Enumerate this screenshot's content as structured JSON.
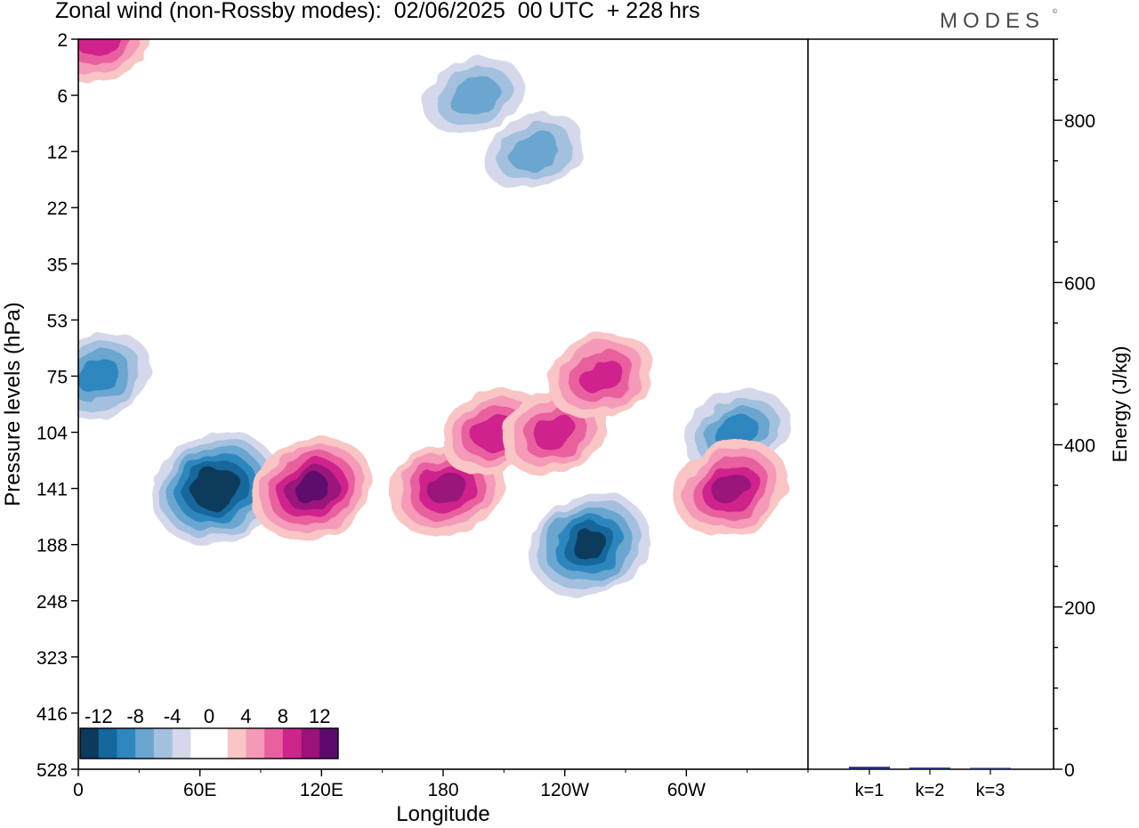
{
  "title": "Zonal wind (non-Rossby modes):  02/06/2025  00 UTC  + 228 hrs",
  "logo": "MODES",
  "logo_mark": "©",
  "chart_data": [
    {
      "type": "heatmap",
      "name": "zonal-wind-contours",
      "xlabel": "Longitude",
      "ylabel": "Pressure levels (hPa)",
      "x_ticks": [
        "0",
        "60E",
        "120E",
        "180",
        "120W",
        "60W"
      ],
      "x_tick_degrees": [
        0,
        60,
        120,
        180,
        240,
        300
      ],
      "xlim": [
        0,
        360
      ],
      "y_ticks": [
        "2",
        "6",
        "12",
        "22",
        "35",
        "53",
        "75",
        "104",
        "141",
        "188",
        "248",
        "323",
        "416",
        "528"
      ],
      "colorbar": {
        "labels": [
          "-12",
          "-8",
          "-4",
          "0",
          "4",
          "8",
          "12"
        ],
        "colors": [
          "#0b3a5c",
          "#15679c",
          "#2f86bf",
          "#6aa6cf",
          "#a3c0de",
          "#d4d8ea",
          "#ffffff",
          "#ffffff",
          "#f9c5c5",
          "#f59ab8",
          "#e9609e",
          "#cf248c",
          "#9a127a",
          "#5b0a6e"
        ]
      },
      "features": [
        {
          "lon": 68,
          "level": 141,
          "value": -14
        },
        {
          "lon": 10,
          "level": 75,
          "value": -8
        },
        {
          "lon": 115,
          "level": 141,
          "value": 12
        },
        {
          "lon": 182,
          "level": 141,
          "value": 10
        },
        {
          "lon": 205,
          "level": 104,
          "value": 8
        },
        {
          "lon": 235,
          "level": 104,
          "value": 8
        },
        {
          "lon": 258,
          "level": 75,
          "value": 8
        },
        {
          "lon": 252,
          "level": 188,
          "value": -12
        },
        {
          "lon": 325,
          "level": 104,
          "value": -8
        },
        {
          "lon": 322,
          "level": 141,
          "value": 10
        },
        {
          "lon": 10,
          "level": 2,
          "value": 8
        },
        {
          "lon": 195,
          "level": 6,
          "value": -6
        },
        {
          "lon": 225,
          "level": 12,
          "value": -6
        }
      ]
    },
    {
      "type": "bar",
      "name": "energy-bars",
      "ylabel": "Energy (J/kg)",
      "categories": [
        "k=1",
        "k=2",
        "k=3"
      ],
      "values": [
        3,
        2,
        1
      ],
      "ylim": [
        0,
        900
      ],
      "y_ticks": [
        0,
        200,
        400,
        600,
        800
      ],
      "bar_color": "#1f2a6b"
    }
  ]
}
